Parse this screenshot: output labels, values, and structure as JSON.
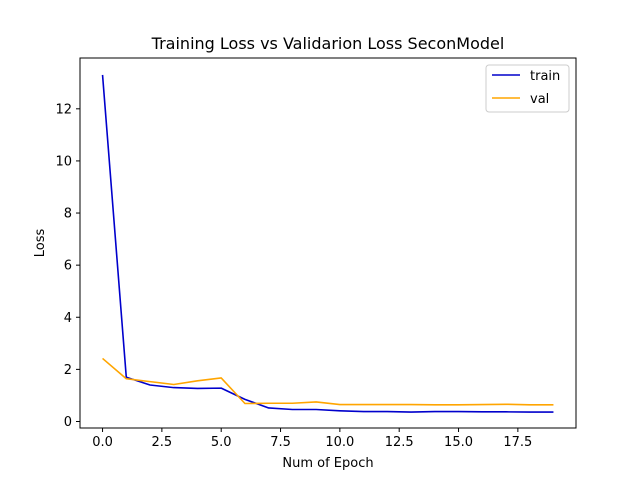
{
  "chart_data": {
    "type": "line",
    "title": "Training Loss vs Validarion Loss SeconModel",
    "xlabel": "Num of Epoch",
    "ylabel": "Loss",
    "x": [
      0,
      1,
      2,
      3,
      4,
      5,
      6,
      7,
      8,
      9,
      10,
      11,
      12,
      13,
      14,
      15,
      16,
      17,
      18,
      19
    ],
    "xlim": [
      -0.95,
      19.95
    ],
    "ylim": [
      -0.25,
      13.95
    ],
    "xticks": [
      0,
      2.5,
      5,
      7.5,
      10,
      12.5,
      15,
      17.5
    ],
    "xtick_labels": [
      "0.0",
      "2.5",
      "5.0",
      "7.5",
      "10.0",
      "12.5",
      "15.0",
      "17.5"
    ],
    "yticks": [
      0,
      2,
      4,
      6,
      8,
      10,
      12
    ],
    "ytick_labels": [
      "0",
      "2",
      "4",
      "6",
      "8",
      "10",
      "12"
    ],
    "grid": false,
    "legend_position": "top-right",
    "series": [
      {
        "name": "train",
        "color": "#0000cc",
        "values": [
          13.3,
          1.7,
          1.4,
          1.3,
          1.27,
          1.28,
          0.85,
          0.52,
          0.46,
          0.46,
          0.41,
          0.38,
          0.38,
          0.36,
          0.38,
          0.38,
          0.37,
          0.37,
          0.36,
          0.36
        ]
      },
      {
        "name": "val",
        "color": "#ffa500",
        "values": [
          2.42,
          1.64,
          1.53,
          1.42,
          1.56,
          1.67,
          0.69,
          0.7,
          0.7,
          0.75,
          0.65,
          0.65,
          0.65,
          0.65,
          0.64,
          0.64,
          0.65,
          0.66,
          0.64,
          0.64
        ]
      }
    ]
  }
}
